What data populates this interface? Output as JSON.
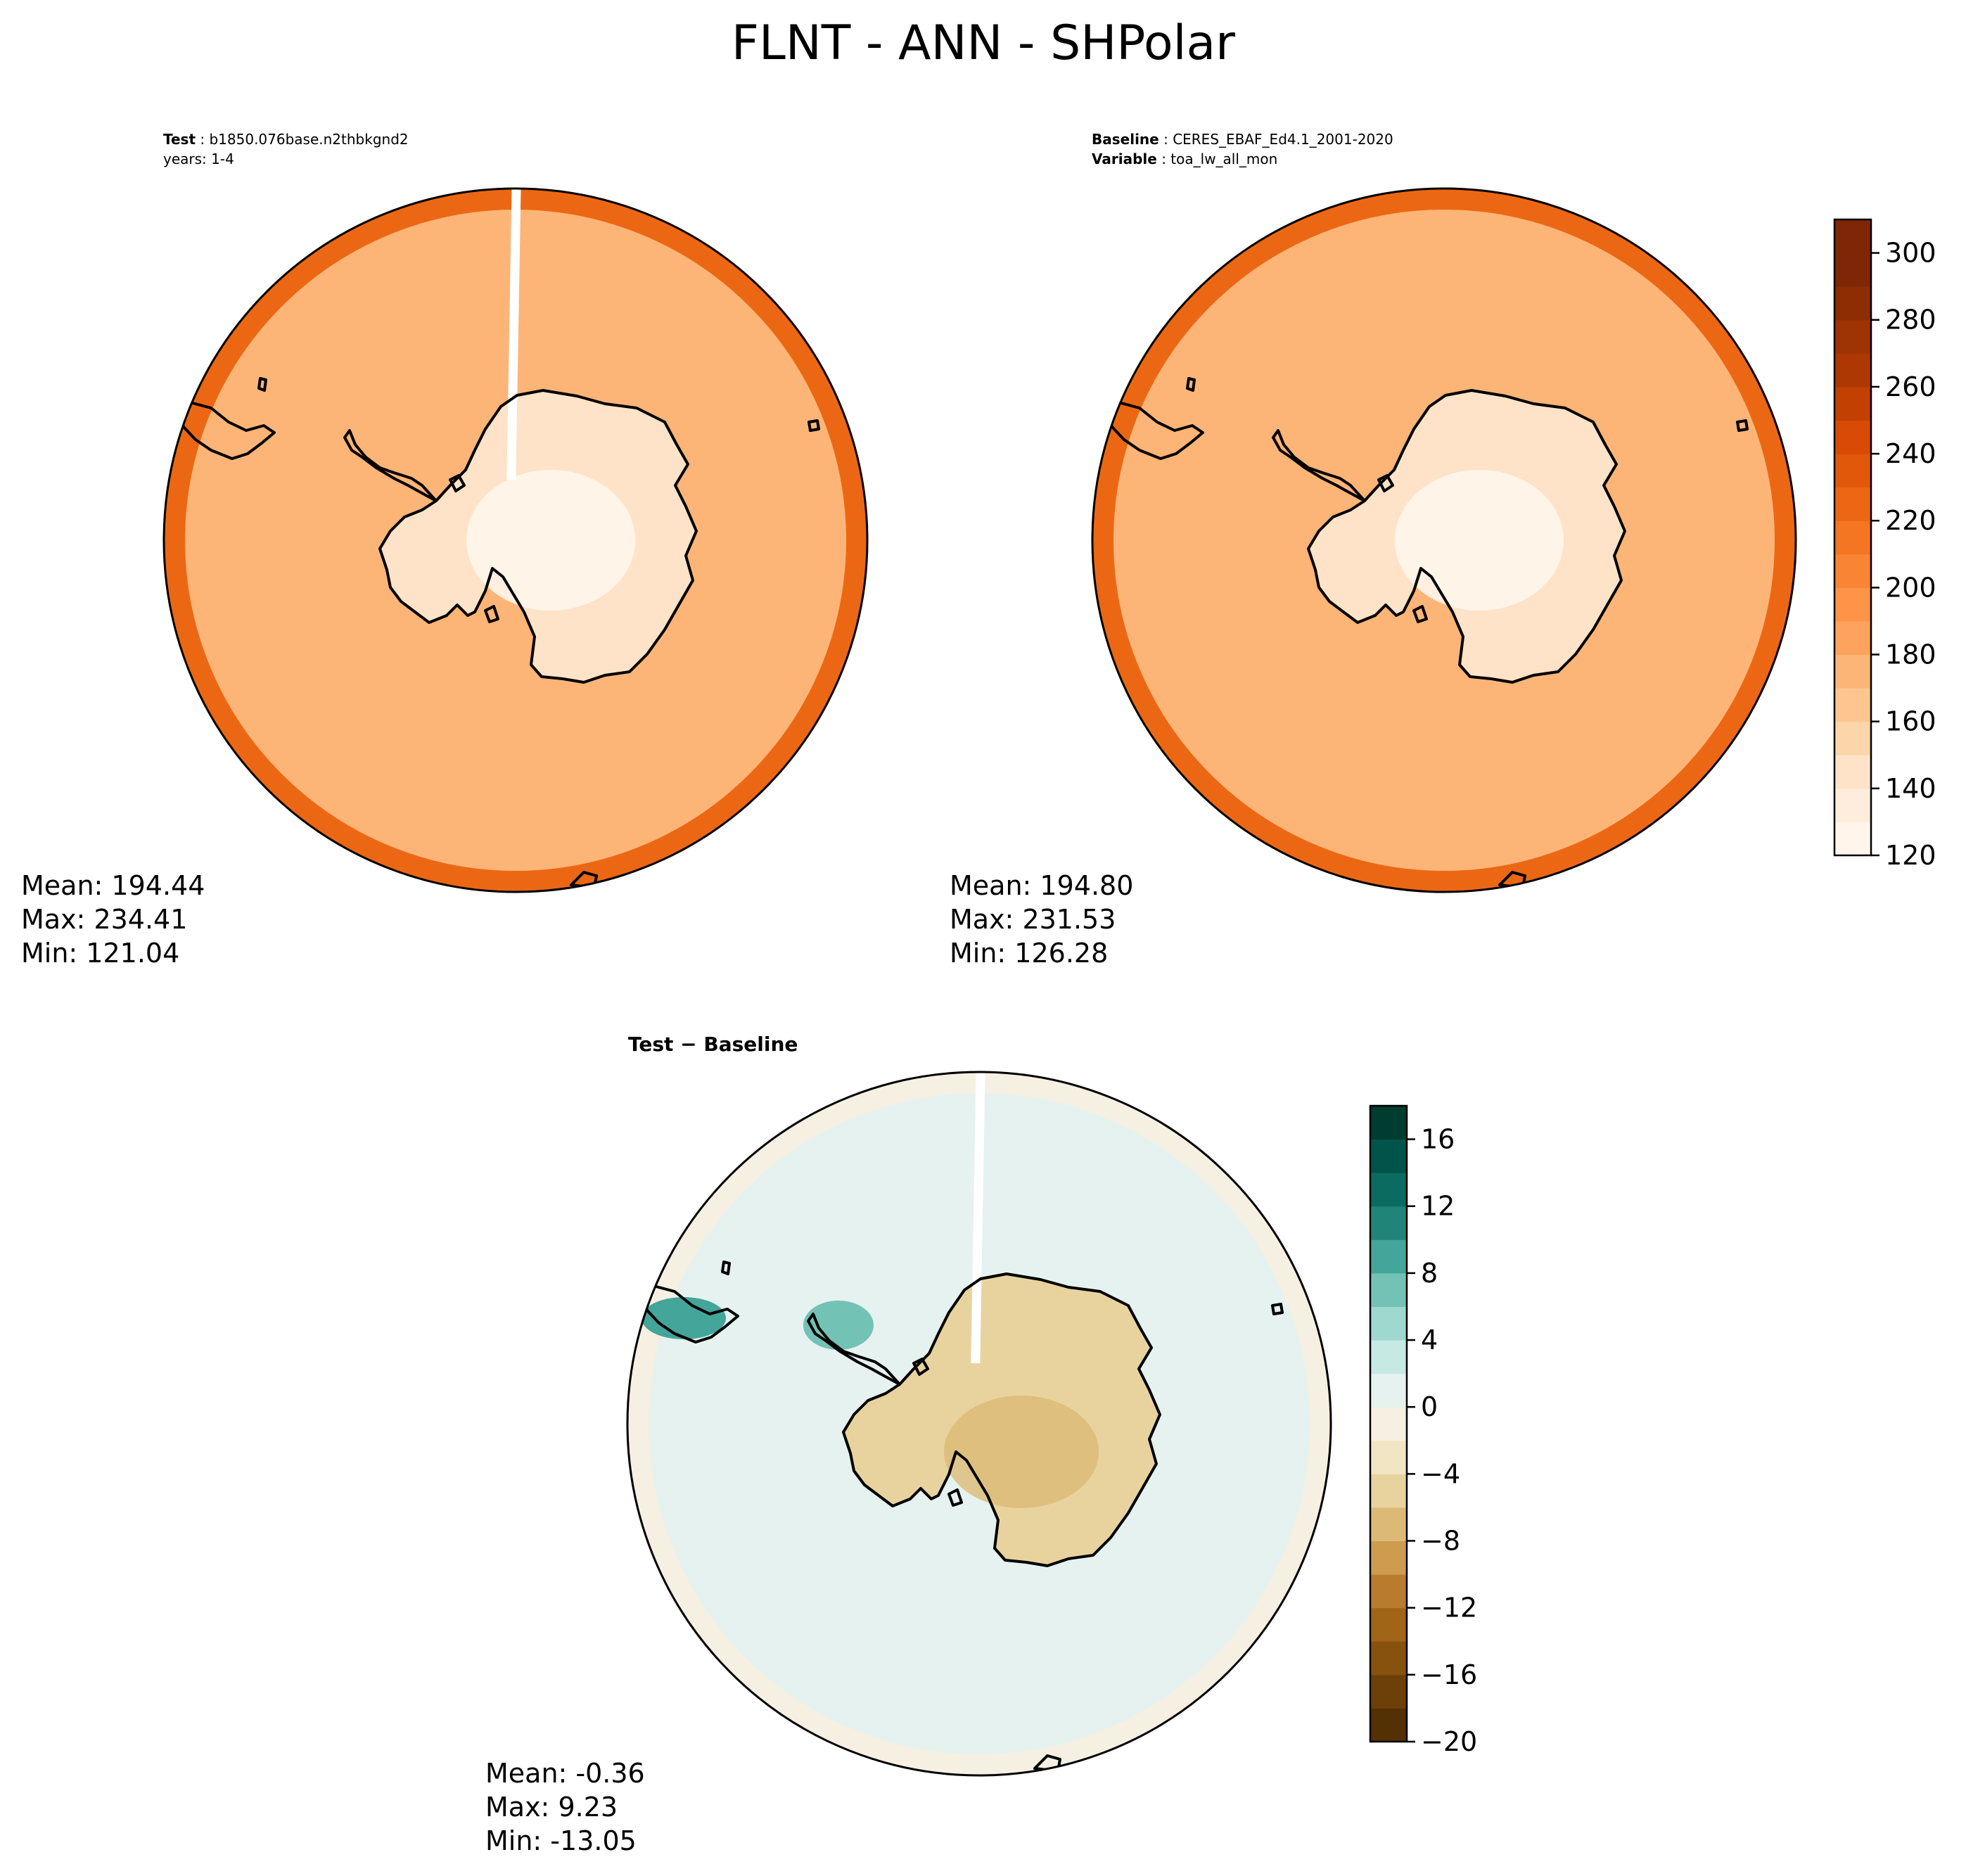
{
  "title": "FLNT - ANN - SHPolar",
  "panels": [
    {
      "id": "test",
      "header": [
        {
          "key": "Test",
          "value": "b1850.076base.n2thbkgnd2"
        },
        {
          "key": "",
          "value": "years: 1-4"
        }
      ],
      "stats": {
        "mean": "Mean: 194.44",
        "max": "Max: 234.41",
        "min": "Min: 121.04"
      },
      "cmap": "oranges",
      "fields": {
        "land": 140,
        "rings": [
          [
            0.0,
            170
          ],
          [
            0.35,
            185
          ],
          [
            0.62,
            200
          ],
          [
            0.8,
            212
          ],
          [
            0.93,
            222
          ]
        ]
      }
    },
    {
      "id": "baseline",
      "header": [
        {
          "key": "Baseline",
          "value": "CERES_EBAF_Ed4.1_2001-2020"
        },
        {
          "key": "Variable",
          "value": "toa_lw_all_mon"
        }
      ],
      "stats": {
        "mean": "Mean: 194.80",
        "max": "Max: 231.53",
        "min": "Min: 126.28"
      },
      "cmap": "oranges",
      "fields": {
        "land": 142,
        "rings": [
          [
            0.0,
            172
          ],
          [
            0.35,
            188
          ],
          [
            0.62,
            202
          ],
          [
            0.8,
            214
          ],
          [
            0.93,
            224
          ]
        ]
      }
    },
    {
      "id": "diff",
      "header": [
        {
          "key": "Test",
          "value": "Baseline",
          "sep": " − "
        }
      ],
      "stats": {
        "mean": "Mean: -0.36",
        "max": "Max:  9.23",
        "min": "Min: -13.05"
      },
      "cmap": "brbg",
      "fields": {
        "land": -5,
        "rings": [
          [
            0.0,
            1
          ],
          [
            0.45,
            -1
          ],
          [
            0.7,
            1
          ],
          [
            0.9,
            -1
          ]
        ]
      }
    }
  ],
  "colorbars": {
    "abs": {
      "ticks": [
        "120",
        "140",
        "160",
        "180",
        "200",
        "220",
        "240",
        "260",
        "280",
        "300"
      ],
      "levels": [
        120,
        130,
        140,
        150,
        160,
        170,
        180,
        190,
        200,
        210,
        220,
        230,
        240,
        250,
        260,
        270,
        280,
        290,
        300,
        310
      ],
      "colors": [
        "#fff5eb",
        "#feeddc",
        "#fee3c8",
        "#fdd5ab",
        "#fdc691",
        "#fdb577",
        "#fda35e",
        "#fd9447",
        "#f98534",
        "#f47622",
        "#ec6714",
        "#e1580a",
        "#d84a05",
        "#c14002",
        "#ad3803",
        "#9e3303",
        "#8e2d04",
        "#7f2704",
        "#7f2704"
      ]
    },
    "diff": {
      "ticks": [
        "−20",
        "−16",
        "−12",
        "−8",
        "−4",
        "0",
        "4",
        "8",
        "12",
        "16"
      ],
      "levels": [
        -20,
        -18,
        -16,
        -14,
        -12,
        -10,
        -8,
        -6,
        -4,
        -2,
        0,
        2,
        4,
        6,
        8,
        10,
        12,
        14,
        16,
        18
      ],
      "colors": [
        "#543005",
        "#6d4009",
        "#87510e",
        "#a16518",
        "#b97c2f",
        "#cd9c4f",
        "#dcba76",
        "#e8d39f",
        "#f1e5c4",
        "#f5f0e2",
        "#e6f2f0",
        "#c6e9e4",
        "#9ed8cf",
        "#73c2b6",
        "#44a59a",
        "#208478",
        "#0c6b60",
        "#01544a",
        "#003c30"
      ]
    }
  }
}
